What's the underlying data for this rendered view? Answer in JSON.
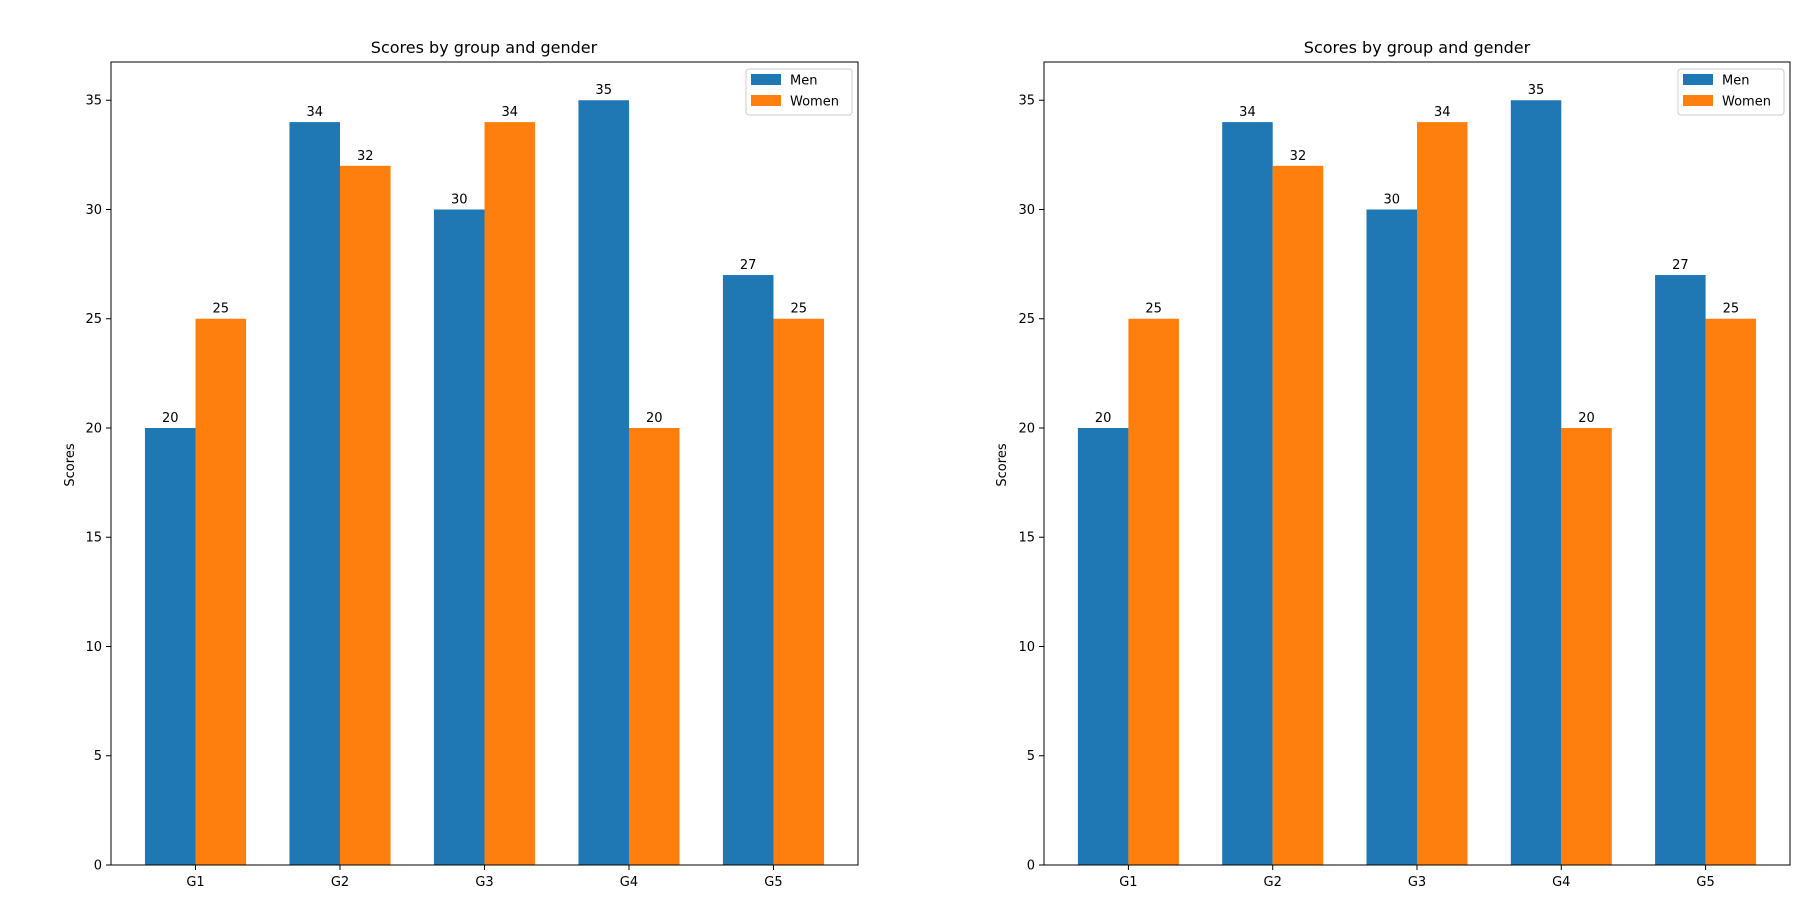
{
  "chart_data": [
    {
      "type": "bar",
      "title": "Scores by group and gender",
      "xlabel": "",
      "ylabel": "Scores",
      "categories": [
        "G1",
        "G2",
        "G3",
        "G4",
        "G5"
      ],
      "series": [
        {
          "name": "Men",
          "values": [
            20,
            34,
            30,
            35,
            27
          ],
          "color": "#1f77b4"
        },
        {
          "name": "Women",
          "values": [
            25,
            32,
            34,
            20,
            25
          ],
          "color": "#ff7f0e"
        }
      ],
      "ylim": [
        0,
        36.75
      ],
      "yticks": [
        0,
        5,
        10,
        15,
        20,
        25,
        30,
        35
      ],
      "grid": false,
      "legend": "upper right"
    },
    {
      "type": "bar",
      "title": "Scores by group and gender",
      "xlabel": "",
      "ylabel": "Scores",
      "categories": [
        "G1",
        "G2",
        "G3",
        "G4",
        "G5"
      ],
      "series": [
        {
          "name": "Men",
          "values": [
            20,
            34,
            30,
            35,
            27
          ],
          "color": "#1f77b4"
        },
        {
          "name": "Women",
          "values": [
            25,
            32,
            34,
            20,
            25
          ],
          "color": "#ff7f0e"
        }
      ],
      "ylim": [
        0,
        36.75
      ],
      "yticks": [
        0,
        5,
        10,
        15,
        20,
        25,
        30,
        35
      ],
      "grid": false,
      "legend": "upper right"
    }
  ]
}
